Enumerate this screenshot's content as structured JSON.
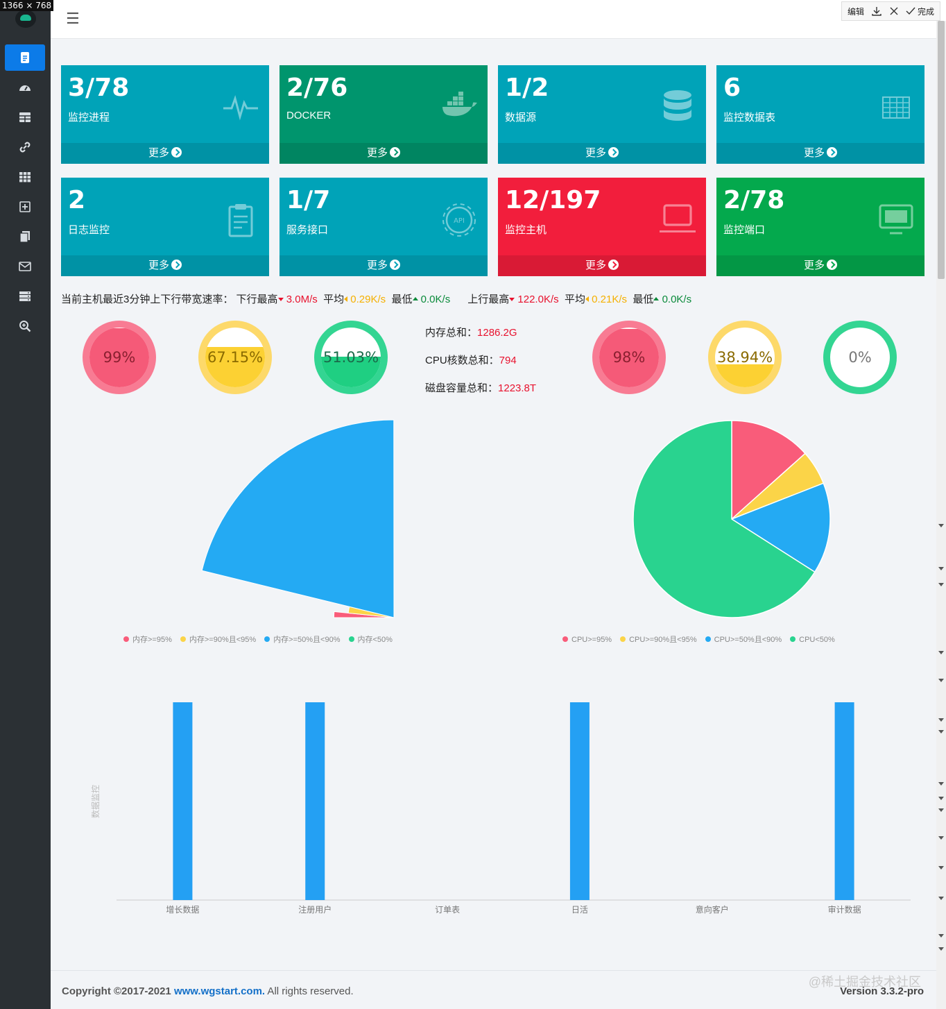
{
  "window_badge": "1366 × 768",
  "toolbar": {
    "edit": "编辑",
    "done": "完成"
  },
  "topbar": {
    "menu_icon": "hamburger-icon"
  },
  "sidebar": {
    "items": [
      {
        "icon": "document-icon",
        "active": true
      },
      {
        "icon": "dashboard-icon"
      },
      {
        "icon": "table-icon"
      },
      {
        "icon": "link-icon"
      },
      {
        "icon": "grid-icon"
      },
      {
        "icon": "plus-square-icon"
      },
      {
        "icon": "copy-icon"
      },
      {
        "icon": "mail-icon"
      },
      {
        "icon": "server-icon"
      },
      {
        "icon": "zoom-in-icon"
      }
    ]
  },
  "cards": [
    {
      "value": "3/78",
      "label": "监控进程",
      "more": "更多",
      "color": "#00a3b8",
      "icon": "heartbeat-icon"
    },
    {
      "value": "2/76",
      "label": "DOCKER",
      "more": "更多",
      "color": "#00956d",
      "icon": "docker-icon"
    },
    {
      "value": "1/2",
      "label": "数据源",
      "more": "更多",
      "color": "#00a3b8",
      "icon": "database-icon"
    },
    {
      "value": "6",
      "label": "监控数据表",
      "more": "更多",
      "color": "#00a3b8",
      "icon": "table-icon"
    },
    {
      "value": "2",
      "label": "日志监控",
      "more": "更多",
      "color": "#00a3b8",
      "icon": "clipboard-icon"
    },
    {
      "value": "1/7",
      "label": "服务接口",
      "more": "更多",
      "color": "#00a3b8",
      "icon": "api-icon"
    },
    {
      "value": "12/197",
      "label": "监控主机",
      "more": "更多",
      "color": "#f21e3c",
      "icon": "laptop-icon"
    },
    {
      "value": "2/78",
      "label": "监控端口",
      "more": "更多",
      "color": "#04a94d",
      "icon": "monitor-icon"
    }
  ],
  "bandwidth": {
    "prefix": "当前主机最近3分钟上下行带宽速率：",
    "down_max_label": "下行最高",
    "down_max": "3.0M/s",
    "down_avg_label": "平均",
    "down_avg": "0.29K/s",
    "down_min_label": "最低",
    "down_min": "0.0K/s",
    "up_max_label": "上行最高",
    "up_max": "122.0K/s",
    "up_avg_label": "平均",
    "up_avg": "0.21K/s",
    "up_min_label": "最低",
    "up_min": "0.0K/s"
  },
  "gauges": [
    {
      "text": "99%",
      "fraction": 0.99,
      "color": "#f55a78",
      "ring": "#f87b93"
    },
    {
      "text": "67.15%",
      "fraction": 0.6715,
      "color": "#fcd133",
      "ring": "#fdd96a"
    },
    {
      "text": "51.03%",
      "fraction": 0.5103,
      "color": "#1fcf82",
      "ring": "#33d592"
    },
    {
      "text": "98%",
      "fraction": 0.98,
      "color": "#f55a78",
      "ring": "#f87b93"
    },
    {
      "text": "38.94%",
      "fraction": 0.3894,
      "color": "#fcd133",
      "ring": "#fdd96a"
    },
    {
      "text": "0%",
      "fraction": 0,
      "color": "#1fcf82",
      "ring": "#33d592"
    }
  ],
  "totals": {
    "memory_label": "内存总和：",
    "memory_value": "1286.2G",
    "cpu_label": "CPU核数总和：",
    "cpu_value": "794",
    "disk_label": "磁盘容量总和：",
    "disk_value": "1223.8T"
  },
  "chart_data": [
    {
      "type": "pie",
      "style": "rose",
      "categories": [
        "内存>=95%",
        "内存>=90%且<95%",
        "内存>=50%且<90%",
        "内存<50%"
      ],
      "values": [
        12,
        7,
        130,
        0
      ],
      "colors": [
        "#f95c7a",
        "#fbd448",
        "#24aaf3",
        "#29d38f"
      ]
    },
    {
      "type": "pie",
      "categories": [
        "CPU>=95%",
        "CPU>=90%且<95%",
        "CPU>=50%且<90%",
        "CPU<50%"
      ],
      "values": [
        26,
        11,
        29,
        128
      ],
      "colors": [
        "#f95c7a",
        "#fbd448",
        "#24aaf3",
        "#29d38f"
      ]
    },
    {
      "type": "bar",
      "categories": [
        "增长数据",
        "注册用户",
        "订单表",
        "日活",
        "意向客户",
        "审计数据"
      ],
      "values": [
        1,
        1,
        0,
        1,
        0,
        1
      ],
      "ylabel": "数据监控",
      "ylim": [
        0,
        1
      ],
      "color": "#24a0f3"
    }
  ],
  "footer": {
    "copyright_prefix": "Copyright ©2017-2021 ",
    "site": "www.wgstart.com.",
    "rights": " All rights reserved.",
    "watermark": "@稀土掘金技术社区",
    "version": "Version 3.3.2-pro"
  }
}
